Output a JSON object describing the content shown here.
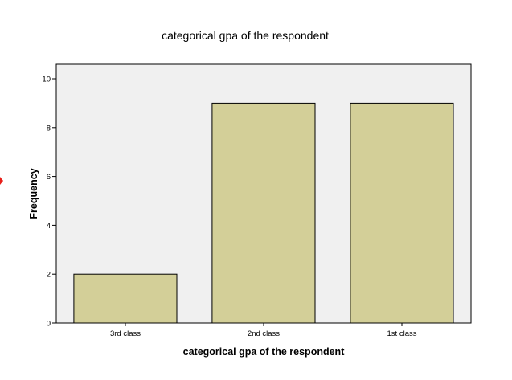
{
  "chart_data": {
    "type": "bar",
    "title": "categorical gpa of the respondent",
    "xlabel": "categorical gpa of the respondent",
    "ylabel": "Frequency",
    "categories": [
      "3rd class",
      "2nd class",
      "1st class"
    ],
    "values": [
      2,
      9,
      9
    ],
    "ylim": [
      0,
      10
    ],
    "yticks": [
      0,
      2,
      4,
      6,
      8,
      10
    ],
    "grid": false,
    "legend": "none"
  },
  "colors": {
    "bar_fill": "#d3cf98",
    "bar_stroke": "#000000",
    "plot_background": "#f0f0f0",
    "marker": "#e8201a"
  },
  "icons": {
    "side_marker": "red-diamond-marker-icon"
  }
}
